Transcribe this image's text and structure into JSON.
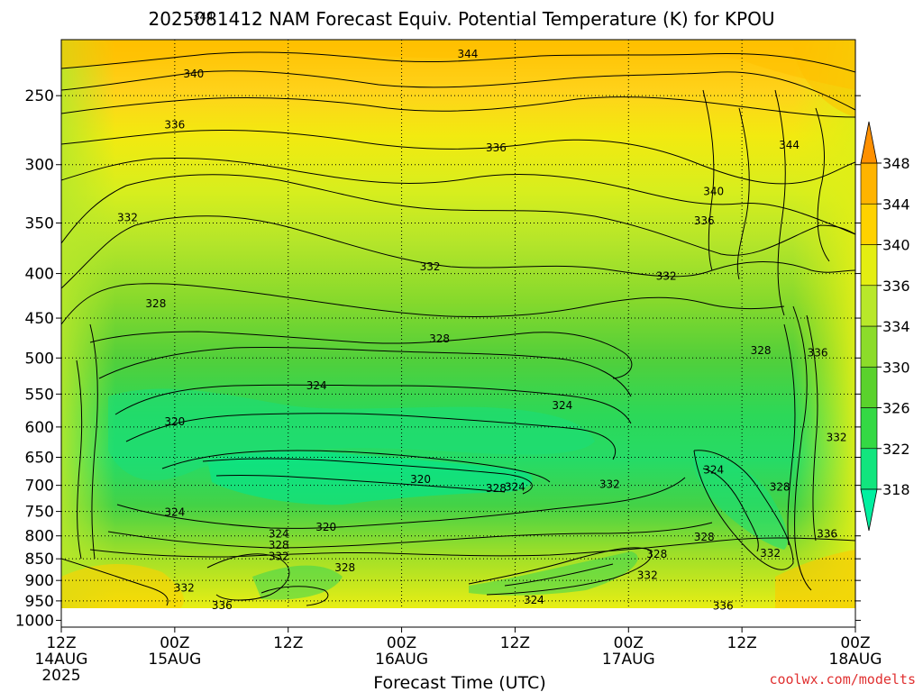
{
  "chart_data": {
    "type": "heatmap",
    "title": "2025081412 NAM Forecast Equiv. Potential Temperature (K) for KPOU",
    "xlabel": "Forecast Time (UTC)",
    "ylabel": "",
    "y_scale": "log",
    "y_reversed": true,
    "y_ticks": [
      250,
      300,
      350,
      400,
      450,
      500,
      550,
      600,
      650,
      700,
      750,
      800,
      850,
      900,
      950,
      1000
    ],
    "y_tick_labels": [
      "250",
      "300",
      "350",
      "400",
      "450",
      "500",
      "550",
      "600",
      "650",
      "700",
      "750",
      "800",
      "850",
      "900",
      "950",
      "1000"
    ],
    "x_ticks": [
      {
        "label": "12Z",
        "sub": "14AUG",
        "year": "2025"
      },
      {
        "label": "00Z",
        "sub": "15AUG",
        "year": ""
      },
      {
        "label": "12Z",
        "sub": "",
        "year": ""
      },
      {
        "label": "00Z",
        "sub": "16AUG",
        "year": ""
      },
      {
        "label": "12Z",
        "sub": "",
        "year": ""
      },
      {
        "label": "00Z",
        "sub": "17AUG",
        "year": ""
      },
      {
        "label": "12Z",
        "sub": "",
        "year": ""
      },
      {
        "label": "00Z",
        "sub": "18AUG",
        "year": ""
      }
    ],
    "x_range_hours": [
      0,
      84
    ],
    "grid": true,
    "colorbar": {
      "levels": [
        318,
        322,
        326,
        330,
        334,
        336,
        340,
        344,
        348
      ],
      "labels": [
        "318",
        "322",
        "326",
        "330",
        "334",
        "336",
        "340",
        "344",
        "348"
      ],
      "colors": [
        "#00f0a0",
        "#12e57e",
        "#34d944",
        "#5ad22c",
        "#8cdc2a",
        "#b8e82a",
        "#e4ee12",
        "#ffd200",
        "#ffb400",
        "#ff9000"
      ]
    },
    "contour_labels": [
      {
        "text": "344",
        "hour": 15,
        "p": 203
      },
      {
        "text": "344",
        "hour": 43,
        "p": 224
      },
      {
        "text": "344",
        "hour": 77,
        "p": 285
      },
      {
        "text": "340",
        "hour": 14,
        "p": 236
      },
      {
        "text": "340",
        "hour": 69,
        "p": 322
      },
      {
        "text": "336",
        "hour": 12,
        "p": 270
      },
      {
        "text": "336",
        "hour": 46,
        "p": 287
      },
      {
        "text": "336",
        "hour": 68,
        "p": 348
      },
      {
        "text": "332",
        "hour": 7,
        "p": 345
      },
      {
        "text": "332",
        "hour": 39,
        "p": 393
      },
      {
        "text": "332",
        "hour": 64,
        "p": 403
      },
      {
        "text": "328",
        "hour": 10,
        "p": 433
      },
      {
        "text": "328",
        "hour": 40,
        "p": 475
      },
      {
        "text": "328",
        "hour": 74,
        "p": 490
      },
      {
        "text": "324",
        "hour": 27,
        "p": 538
      },
      {
        "text": "324",
        "hour": 53,
        "p": 567
      },
      {
        "text": "324",
        "hour": 69,
        "p": 672
      },
      {
        "text": "320",
        "hour": 12,
        "p": 592
      },
      {
        "text": "320",
        "hour": 38,
        "p": 689
      },
      {
        "text": "320",
        "hour": 28,
        "p": 782
      },
      {
        "text": "324",
        "hour": 12,
        "p": 752
      },
      {
        "text": "328",
        "hour": 46,
        "p": 706
      },
      {
        "text": "324",
        "hour": 48,
        "p": 703
      },
      {
        "text": "332",
        "hour": 58,
        "p": 698
      },
      {
        "text": "328",
        "hour": 76,
        "p": 703
      },
      {
        "text": "324",
        "hour": 23,
        "p": 796
      },
      {
        "text": "328",
        "hour": 23,
        "p": 820
      },
      {
        "text": "332",
        "hour": 23,
        "p": 845
      },
      {
        "text": "328",
        "hour": 30,
        "p": 870
      },
      {
        "text": "332",
        "hour": 13,
        "p": 918
      },
      {
        "text": "336",
        "hour": 17,
        "p": 962
      },
      {
        "text": "328",
        "hour": 63,
        "p": 840
      },
      {
        "text": "332",
        "hour": 62,
        "p": 888
      },
      {
        "text": "324",
        "hour": 50,
        "p": 948
      },
      {
        "text": "328",
        "hour": 68,
        "p": 802
      },
      {
        "text": "332",
        "hour": 75,
        "p": 838
      },
      {
        "text": "336",
        "hour": 81,
        "p": 796
      },
      {
        "text": "336",
        "hour": 70,
        "p": 963
      },
      {
        "text": "336",
        "hour": 80,
        "p": 493
      },
      {
        "text": "332",
        "hour": 82,
        "p": 617
      }
    ]
  },
  "credit": "coolwx.com/modelts"
}
